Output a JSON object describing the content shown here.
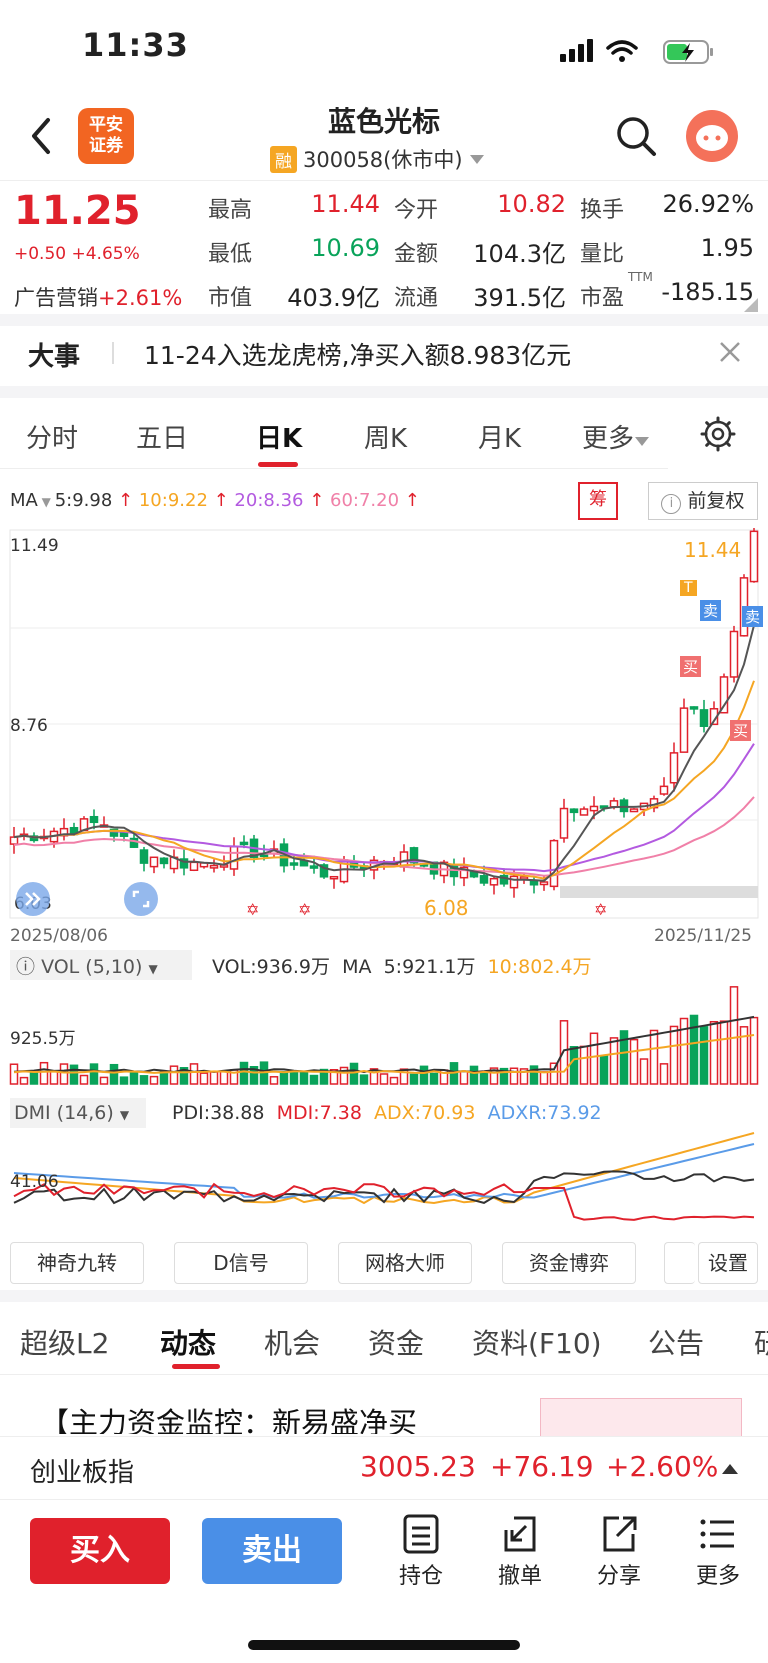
{
  "status": {
    "time": "11:33"
  },
  "header": {
    "logo_text_1": "平安",
    "logo_text_2": "证券",
    "title": "蓝色光标",
    "rong_badge": "融",
    "code_status": "300058(休市中)"
  },
  "quote": {
    "price": "11.25",
    "change": "+0.50 +4.65%",
    "sector_label": "广告营销",
    "sector_change": "+2.61%",
    "fields": [
      {
        "label": "最高",
        "value": "11.44",
        "color": "red"
      },
      {
        "label": "今开",
        "value": "10.82",
        "color": "red"
      },
      {
        "label": "换手",
        "value": "26.92%",
        "color": "black"
      },
      {
        "label": "最低",
        "value": "10.69",
        "color": "green"
      },
      {
        "label": "金额",
        "value": "104.3亿",
        "color": "black"
      },
      {
        "label": "量比",
        "value": "1.95",
        "color": "black"
      },
      {
        "label": "市值",
        "value": "403.9亿",
        "color": "black"
      },
      {
        "label": "流通",
        "value": "391.5亿",
        "color": "black"
      },
      {
        "label": "市盈",
        "value": "-185.15",
        "color": "black"
      }
    ],
    "ttm": "TTM"
  },
  "news": {
    "tag": "大事",
    "text": "11-24入选龙虎榜,净买入额8.983亿元"
  },
  "chart_tabs": [
    {
      "label": "分时"
    },
    {
      "label": "五日"
    },
    {
      "label": "日K"
    },
    {
      "label": "周K"
    },
    {
      "label": "月K"
    },
    {
      "label": "更多"
    }
  ],
  "ma_legend": {
    "name": "MA",
    "items": [
      {
        "text": "5:9.98",
        "color": "#333333"
      },
      {
        "text": "10:9.22",
        "color": "#f5a623"
      },
      {
        "text": "20:8.36",
        "color": "#b35ae0"
      },
      {
        "text": "60:7.20",
        "color": "#f080a8"
      }
    ],
    "chou": "筹",
    "fq": "前复权"
  },
  "chart_labels": {
    "y_top": "11.49",
    "y_mid": "8.76",
    "y_low": "6.03",
    "max_marker": "11.44",
    "min_marker": "6.08",
    "date_start": "2025/08/06",
    "date_end": "2025/11/25",
    "buy": "买",
    "sell": "卖",
    "t": "T"
  },
  "vol": {
    "label": "VOL (5,10)",
    "vol": "VOL:936.9万",
    "ma": "MA",
    "ma5": "5:921.1万",
    "ma10": "10:802.4万",
    "axis": "925.5万"
  },
  "dmi": {
    "label": "DMI (14,6)",
    "pdi": "PDI:38.88",
    "mdi": "MDI:7.38",
    "adx": "ADX:70.93",
    "adxr": "ADXR:73.92",
    "axis": "41.06"
  },
  "tools": [
    {
      "label": "神奇九转"
    },
    {
      "label": "D信号"
    },
    {
      "label": "网格大师"
    },
    {
      "label": "资金博弈"
    },
    {
      "label": ""
    },
    {
      "label": "设置"
    }
  ],
  "bottom_tabs": [
    {
      "label": "超级L2"
    },
    {
      "label": "动态"
    },
    {
      "label": "机会"
    },
    {
      "label": "资金"
    },
    {
      "label": "资料(F10)"
    },
    {
      "label": "公告"
    },
    {
      "label": "研"
    }
  ],
  "article": {
    "title": "【主力资金监控：新易盛净买"
  },
  "index_bar": {
    "name": "创业板指",
    "value": "3005.23",
    "change": "+76.19",
    "pct": "+2.60%"
  },
  "actions": {
    "buy": "买入",
    "sell": "卖出",
    "hold": "持仓",
    "cancel": "撤单",
    "share": "分享",
    "more": "更多"
  }
}
